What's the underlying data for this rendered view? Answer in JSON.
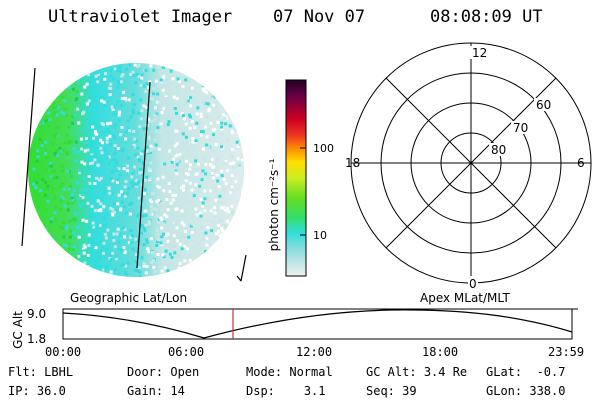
{
  "header": {
    "instrument": "Ultraviolet Imager",
    "date": "07 Nov 07",
    "time": "08:08:09 UT"
  },
  "colorbar": {
    "unit_label": "photon cm⁻²s⁻¹",
    "ticks": [
      "100",
      "10"
    ]
  },
  "polar_plot": {
    "mlt_labels": [
      "12",
      "18",
      "6",
      "0"
    ],
    "lat_labels": [
      "60",
      "70",
      "80"
    ]
  },
  "altitude_plot": {
    "left_title": "Geographic Lat/Lon",
    "right_title": "Apex MLat/MLT",
    "ylabel": "GC Alt",
    "ytick_top": "9.0",
    "ytick_bottom": "1.8",
    "xticks": [
      "00:00",
      "06:00",
      "12:00",
      "18:00",
      "23:59"
    ]
  },
  "status": {
    "flt": {
      "label": "Flt:",
      "value": "LBHL"
    },
    "ip": {
      "label": "IP:",
      "value": "36.0"
    },
    "door": {
      "label": "Door:",
      "value": "Open"
    },
    "gain": {
      "label": "Gain:",
      "value": "14"
    },
    "mode": {
      "label": "Mode:",
      "value": "Normal"
    },
    "dsp": {
      "label": "Dsp:",
      "value": "3.1"
    },
    "gcalt": {
      "label": "GC Alt:",
      "value": "3.4 Re"
    },
    "seq": {
      "label": "Seq:",
      "value": "39"
    },
    "glat": {
      "label": "GLat:",
      "value": "-0.7"
    },
    "glon": {
      "label": "GLon:",
      "value": "338.0"
    }
  },
  "colors": {
    "green": "#33dd33",
    "cyan": "#33dddd",
    "pale": "#cce6e6",
    "marker": "#cc3333"
  }
}
